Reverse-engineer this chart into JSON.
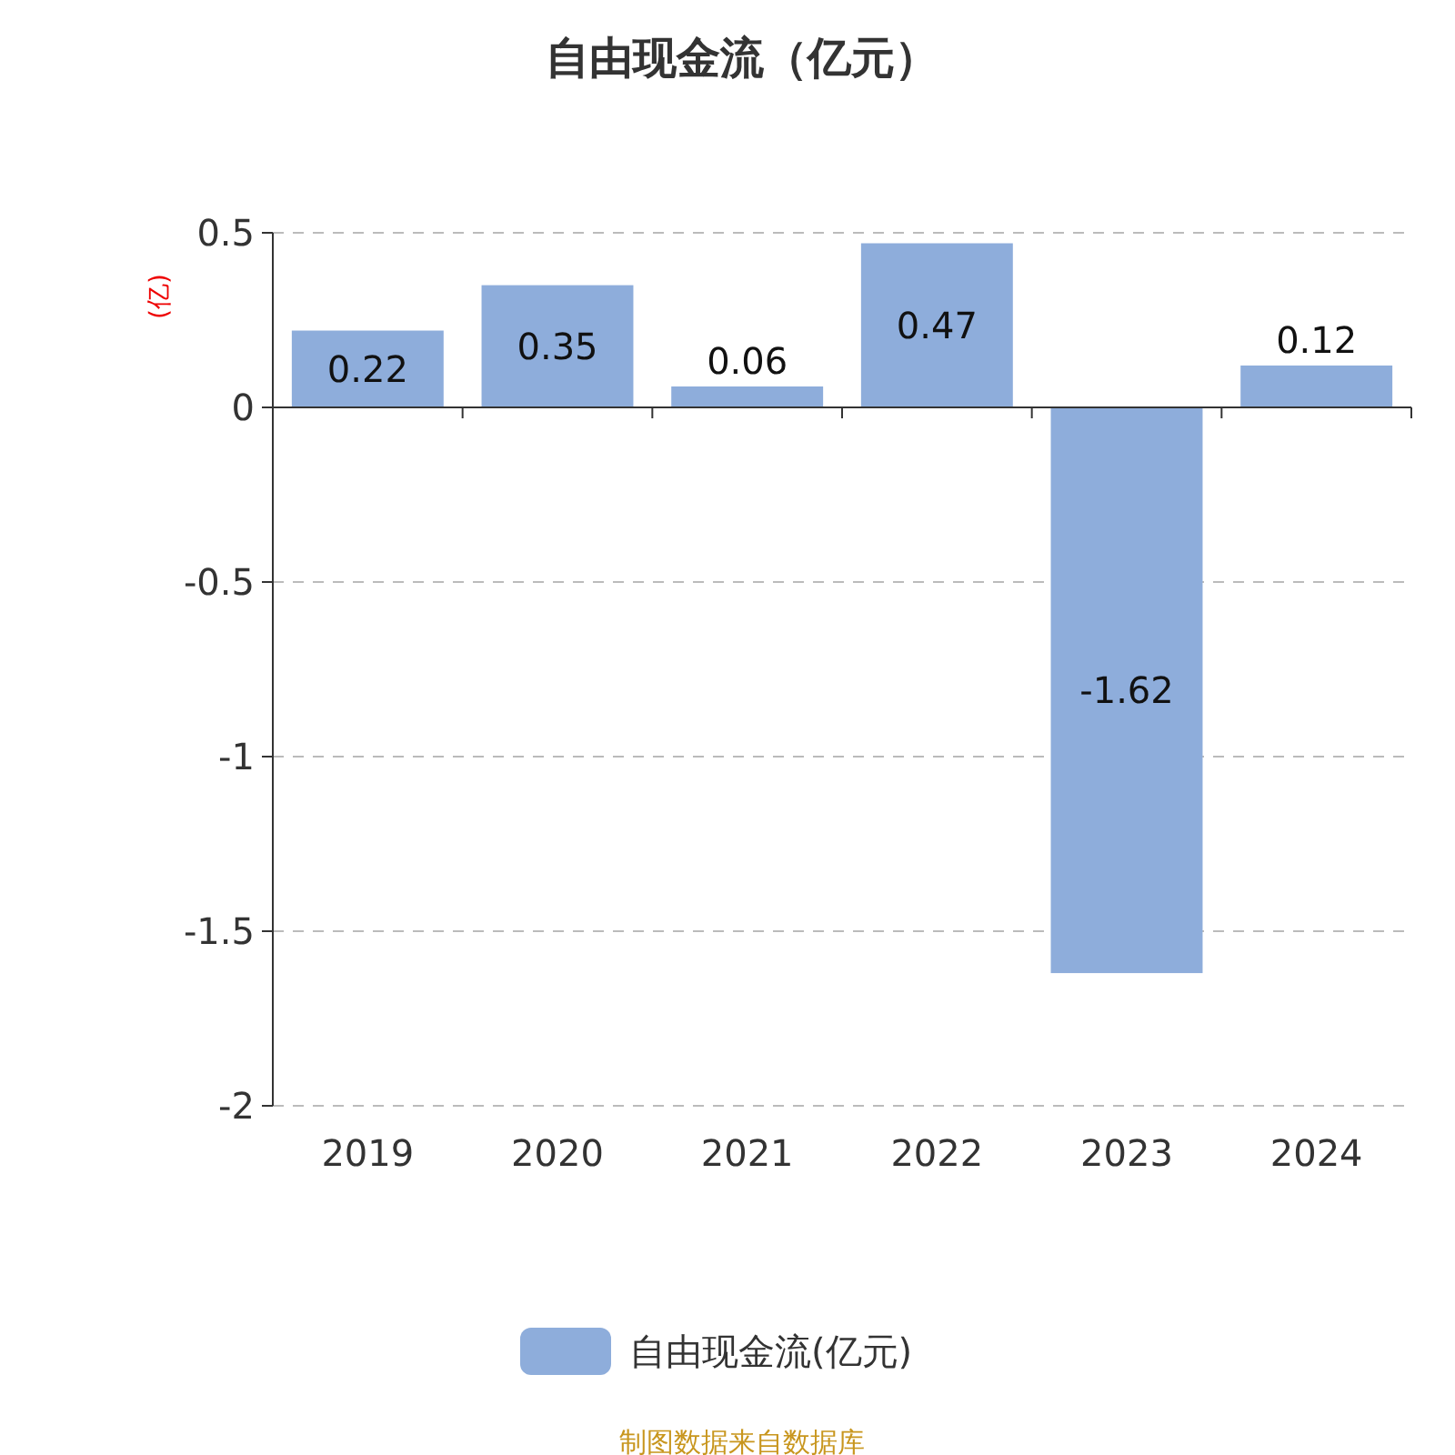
{
  "chart_data": {
    "type": "bar",
    "title": "自由现金流（亿元）",
    "ylabel": "(亿)",
    "categories": [
      "2019",
      "2020",
      "2021",
      "2022",
      "2023",
      "2024"
    ],
    "series": [
      {
        "name": "自由现金流(亿元)",
        "color": "#8eaddb",
        "values": [
          0.22,
          0.35,
          0.06,
          0.47,
          -1.62,
          0.12
        ]
      }
    ],
    "ylim": [
      -2,
      0.5
    ],
    "yticks": [
      0.5,
      0,
      -0.5,
      -1,
      -1.5,
      -2
    ],
    "grid": "y",
    "data_labels": true,
    "legend": "bottom",
    "annotations": [
      "制图数据来自数据库"
    ]
  }
}
